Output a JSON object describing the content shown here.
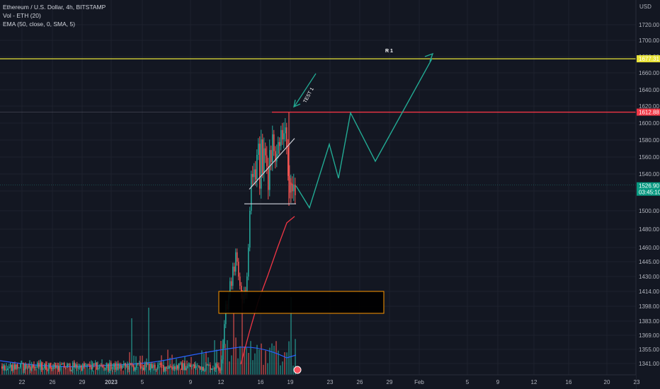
{
  "legend": {
    "symbol": "Ethereum / U.S. Dollar, 4h, BITSTAMP",
    "volume": "Vol - ETH (20)",
    "ema": "EMA (50, close, 0, SMA, 5)"
  },
  "price_axis": {
    "currency": "USD",
    "ticks": [
      "1720.00",
      "1700.00",
      "1680.00",
      "1660.00",
      "1640.00",
      "1620.00",
      "1600.00",
      "1580.00",
      "1560.00",
      "1540.00",
      "1520.00",
      "1500.00",
      "1480.00",
      "1460.00",
      "1445.00",
      "1430.00",
      "1414.00",
      "1398.00",
      "1383.00",
      "1369.00",
      "1355.00",
      "1341.00"
    ]
  },
  "time_axis": {
    "ticks": [
      "22",
      "26",
      "29",
      "2023",
      "5",
      "9",
      "12",
      "16",
      "19",
      "23",
      "26",
      "29",
      "Feb",
      "5",
      "9",
      "12",
      "16",
      "20",
      "23"
    ]
  },
  "price_tags": {
    "r1": "1677.31",
    "resistance": "1612.88",
    "current_price": "1526.90",
    "countdown": "03:45:10"
  },
  "annotations": {
    "r1_label": "R 1",
    "test_label": "TEST 1"
  },
  "colors": {
    "background": "#131722",
    "up": "#26a69a",
    "down": "#ef5350",
    "r1_line": "#e8e338",
    "resistance_line": "#f23645",
    "ema": "#f23645",
    "volume_ma": "#2962ff",
    "projection": "#22ab94",
    "zone": "#ff9800"
  },
  "chart_data": {
    "type": "candlestick",
    "title": "",
    "symbol": "ETH/USD",
    "interval": "4h",
    "exchange": "BITSTAMP",
    "levels": [
      {
        "name": "R 1",
        "price": 1677.31
      },
      {
        "name": "resistance",
        "price": 1612.88
      },
      {
        "name": "current",
        "price": 1526.9
      }
    ],
    "demand_zone": {
      "low": 1398,
      "high": 1414
    },
    "projection_path": [
      {
        "date": "19",
        "price": 1526
      },
      {
        "date": "21",
        "price": 1503
      },
      {
        "date": "23",
        "price": 1575
      },
      {
        "date": "24",
        "price": 1535
      },
      {
        "date": "25",
        "price": 1612
      },
      {
        "date": "28",
        "price": 1555
      },
      {
        "date": "Feb",
        "price": 1677
      }
    ],
    "ema_path": [
      {
        "date": "13",
        "price": 1341
      },
      {
        "date": "15",
        "price": 1440
      },
      {
        "date": "17",
        "price": 1483
      },
      {
        "date": "19",
        "price": 1500
      }
    ],
    "ylim": [
      1335,
      1735
    ]
  }
}
